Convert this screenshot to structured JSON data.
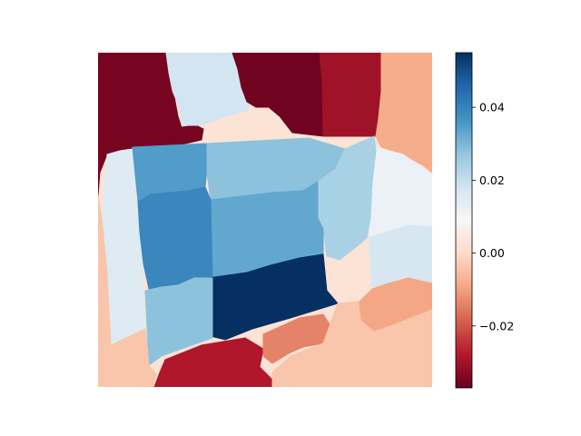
{
  "chart_data": {
    "type": "heatmap",
    "title": "",
    "xlabel": "",
    "ylabel": "",
    "axes_visible": false,
    "grid": false,
    "colormap": "RdBu",
    "colorbar": {
      "placement": "right",
      "vmin": -0.037,
      "vmax": 0.055,
      "ticks": [
        -0.02,
        0.0,
        0.02,
        0.04
      ],
      "tick_labels": [
        "−0.02",
        "0.00",
        "0.02",
        "0.04"
      ]
    },
    "regions": [
      {
        "name": "upper-left-wall",
        "value": -0.035
      },
      {
        "name": "upper-center-strip",
        "value": 0.018
      },
      {
        "name": "upper-right-dark",
        "value": -0.036
      },
      {
        "name": "upper-right-wall",
        "value": -0.03
      },
      {
        "name": "far-right-upper",
        "value": -0.008
      },
      {
        "name": "far-right-middle",
        "value": 0.012
      },
      {
        "name": "far-right-lower",
        "value": 0.017
      },
      {
        "name": "left-panel",
        "value": 0.015
      },
      {
        "name": "box-top-left",
        "value": 0.035
      },
      {
        "name": "box-top-center",
        "value": 0.028
      },
      {
        "name": "box-right-side",
        "value": 0.024
      },
      {
        "name": "box-center",
        "value": 0.033
      },
      {
        "name": "box-left-mid",
        "value": 0.039
      },
      {
        "name": "box-dark-block",
        "value": 0.055
      },
      {
        "name": "box-lower-left",
        "value": 0.028
      },
      {
        "name": "floor-left",
        "value": -0.004
      },
      {
        "name": "floor-bottom-red",
        "value": -0.028
      },
      {
        "name": "floor-center-orange",
        "value": -0.014
      },
      {
        "name": "floor-right",
        "value": -0.004
      },
      {
        "name": "floor-right-orange",
        "value": -0.009
      }
    ]
  }
}
